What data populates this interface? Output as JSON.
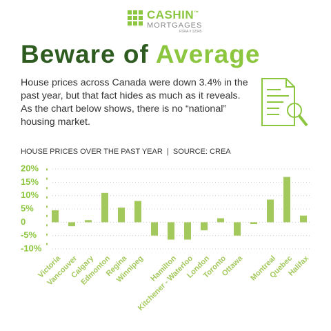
{
  "logo": {
    "name": "CASHIN",
    "trademark": "™",
    "sub": "MORTGAGES",
    "license": "FSRA # 12345"
  },
  "headline": {
    "part1": "Beware of",
    "part2": "Average"
  },
  "intro": "House prices across Canada were down 3.4% in the past year, but that fact hides as much as it reveals. As the chart below shows, there is no “national” housing market.",
  "chart_data": {
    "type": "bar",
    "title": "HOUSE PRICES OVER THE PAST YEAR  |  SOURCE: CREA",
    "categories": [
      "Victoria",
      "Vancouver",
      "Calgary",
      "Edmonton",
      "Regina",
      "Winnipeg",
      null,
      "Hamilton",
      "Kitchener - Waterloo",
      "London",
      "Toronto",
      "Ottawa",
      null,
      "Montreal",
      "Quebec",
      "Halifax"
    ],
    "values": [
      4.5,
      -1.5,
      0.8,
      11,
      5.5,
      8,
      -5,
      -6.5,
      -6.5,
      -3,
      1.5,
      -5,
      -0.7,
      8.5,
      17,
      2.5
    ],
    "color": "#a3c85c",
    "ylim": [
      -10,
      20
    ],
    "yticks": [
      {
        "value": -10,
        "label": "-10%"
      },
      {
        "value": -5,
        "label": "-5%"
      },
      0,
      {
        "value": 5,
        "label": "5%"
      },
      {
        "value": 10,
        "label": "10%"
      },
      {
        "value": 15,
        "label": "15%"
      },
      {
        "value": 20,
        "label": "20%"
      }
    ],
    "grid": true
  }
}
